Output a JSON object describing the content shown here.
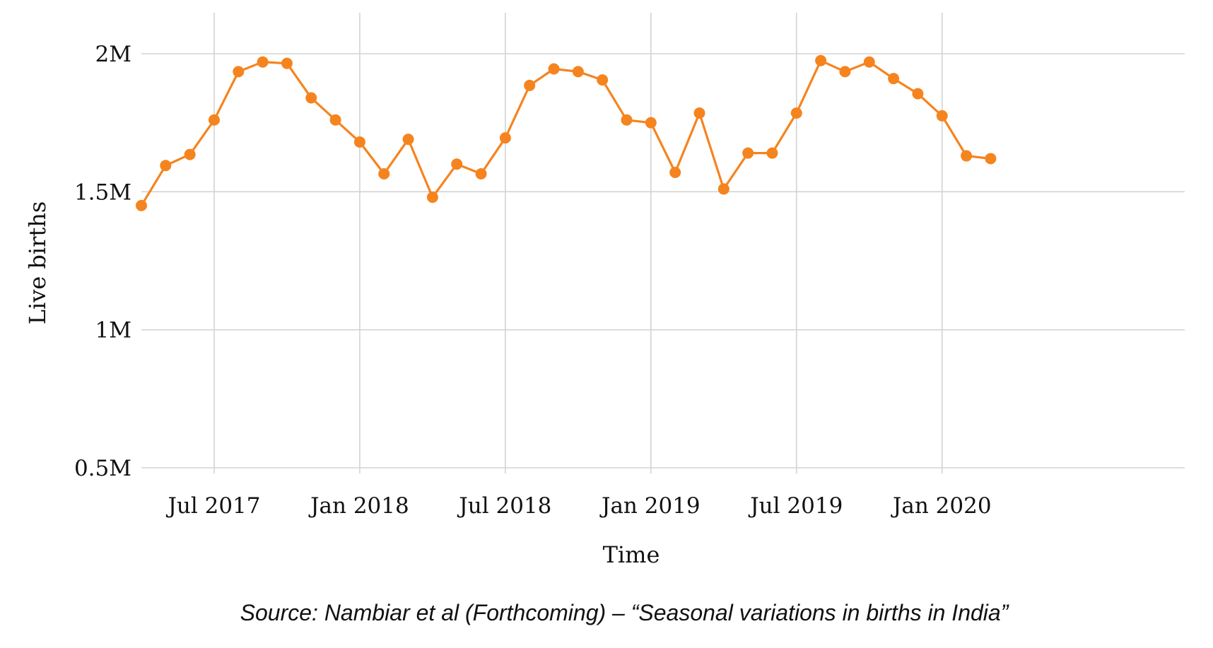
{
  "chart_data": {
    "type": "line",
    "title": "",
    "xlabel": "Time",
    "ylabel": "Live births",
    "source_note": "Source: Nambiar et al (Forthcoming) – “Seasonal variations in births in India”",
    "y_ticks": [
      {
        "value": 500000,
        "label": "0.5M"
      },
      {
        "value": 1000000,
        "label": "1M"
      },
      {
        "value": 1500000,
        "label": "1.5M"
      },
      {
        "value": 2000000,
        "label": "2M"
      }
    ],
    "x_ticks": [
      {
        "value": "2017-07",
        "label": "Jul 2017"
      },
      {
        "value": "2018-01",
        "label": "Jan 2018"
      },
      {
        "value": "2018-07",
        "label": "Jul 2018"
      },
      {
        "value": "2019-01",
        "label": "Jan 2019"
      },
      {
        "value": "2019-07",
        "label": "Jul 2019"
      },
      {
        "value": "2020-01",
        "label": "Jan 2020"
      }
    ],
    "xlim": [
      "2017-04",
      "2020-11"
    ],
    "ylim": [
      500000,
      2000000
    ],
    "grid": true,
    "line_color": "#f5841f",
    "series": [
      {
        "name": "",
        "x": [
          "2017-04",
          "2017-05",
          "2017-06",
          "2017-07",
          "2017-08",
          "2017-09",
          "2017-10",
          "2017-11",
          "2017-12",
          "2018-01",
          "2018-02",
          "2018-03",
          "2018-04",
          "2018-05",
          "2018-06",
          "2018-07",
          "2018-08",
          "2018-09",
          "2018-10",
          "2018-11",
          "2018-12",
          "2019-01",
          "2019-02",
          "2019-03",
          "2019-04",
          "2019-05",
          "2019-06",
          "2019-07",
          "2019-08",
          "2019-09",
          "2019-10",
          "2019-11",
          "2019-12",
          "2020-01",
          "2020-02",
          "2020-03"
        ],
        "values": [
          1450000,
          1595000,
          1635000,
          1760000,
          1935000,
          1970000,
          1965000,
          1840000,
          1760000,
          1680000,
          1565000,
          1690000,
          1480000,
          1600000,
          1565000,
          1695000,
          1885000,
          1945000,
          1935000,
          1905000,
          1760000,
          1750000,
          1570000,
          1785000,
          1510000,
          1640000,
          1640000,
          1785000,
          1975000,
          1935000,
          1970000,
          1910000,
          1855000,
          1775000,
          1630000,
          1620000
        ]
      }
    ]
  }
}
